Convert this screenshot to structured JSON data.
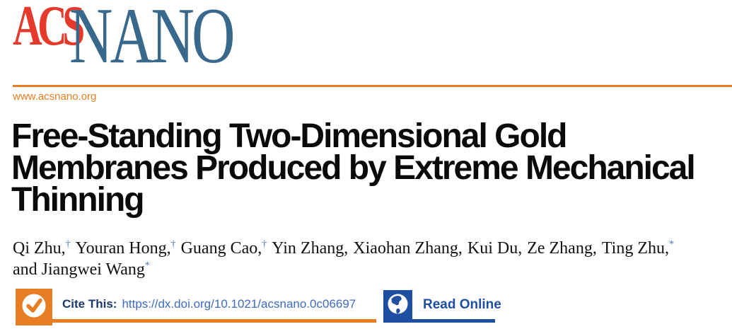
{
  "colors": {
    "orange": "#E87E23",
    "acs_red": "#E5392C",
    "nano_blue": "#38688C",
    "cite_navy": "#1A3A6B",
    "doi_link_blue": "#3E6BC2",
    "read_online_blue": "#1E4FA1",
    "author_mark_blue": "#4A72C4"
  },
  "logo": {
    "acs": "ACS",
    "nano": "NANO"
  },
  "header": {
    "site_url": "www.acsnano.org"
  },
  "article": {
    "title": "Free-Standing Two-Dimensional Gold\nMembranes Produced by Extreme Mechanical\nThinning",
    "authors": [
      {
        "name": "Qi Zhu,",
        "mark": "†"
      },
      {
        "name": "Youran Hong,",
        "mark": "†"
      },
      {
        "name": "Guang Cao,",
        "mark": "†"
      },
      {
        "name": "Yin Zhang,",
        "mark": ""
      },
      {
        "name": "Xiaohan Zhang,",
        "mark": ""
      },
      {
        "name": "Kui Du,",
        "mark": ""
      },
      {
        "name": "Ze Zhang,",
        "mark": ""
      },
      {
        "name": "Ting Zhu,",
        "mark": "*"
      },
      {
        "name": "and Jiangwei Wang",
        "mark": "*",
        "break": true
      }
    ]
  },
  "cite": {
    "label": "Cite This:",
    "doi_url": "https://dx.doi.org/10.1021/acsnano.0c06697"
  },
  "read_online": {
    "label": "Read Online"
  },
  "icons": {
    "checkmark": "checkmark-icon",
    "globe": "globe-icon"
  }
}
